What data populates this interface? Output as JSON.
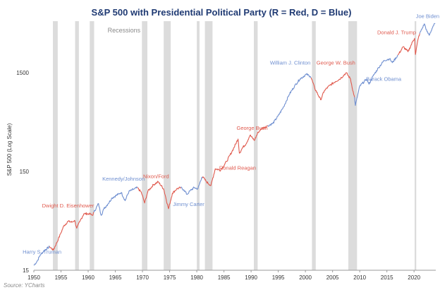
{
  "chart_data": {
    "type": "line",
    "title": "S&P 500 with Presidential Political Party (R = Red, D = Blue)",
    "ylabel": "S&P 500 (Log Scale)",
    "yscale": "log",
    "xlim": [
      1950,
      2024
    ],
    "ylim": [
      15,
      5000
    ],
    "x_ticks": [
      1950,
      1955,
      1960,
      1965,
      1970,
      1975,
      1980,
      1985,
      1990,
      1995,
      2000,
      2005,
      2010,
      2015,
      2020
    ],
    "y_ticks": [
      15,
      150,
      1500
    ],
    "recession_label": "Recessions",
    "recessions": [
      [
        1953.5,
        1954.4
      ],
      [
        1957.6,
        1958.3
      ],
      [
        1960.3,
        1961.1
      ],
      [
        1969.9,
        1970.9
      ],
      [
        1973.9,
        1975.2
      ],
      [
        1980.0,
        1980.5
      ],
      [
        1981.5,
        1982.9
      ],
      [
        1990.5,
        1991.2
      ],
      [
        2001.2,
        2001.9
      ],
      [
        2007.9,
        2009.5
      ],
      [
        2020.1,
        2020.4
      ]
    ],
    "colors": {
      "R": "#e05a4e",
      "D": "#6f8fd0",
      "recession": "#dcdcdc"
    },
    "series": [
      {
        "president": "Harry S. Truman",
        "party": "D",
        "points": [
          [
            1950,
            16.8
          ],
          [
            1950.6,
            18.5
          ],
          [
            1951.2,
            21.5
          ],
          [
            1952,
            24
          ],
          [
            1952.9,
            26
          ]
        ]
      },
      {
        "president": "Dwight D. Eisenhower",
        "party": "R",
        "points": [
          [
            1952.9,
            26
          ],
          [
            1953.6,
            24
          ],
          [
            1954.5,
            31
          ],
          [
            1955,
            36
          ],
          [
            1955.5,
            42
          ],
          [
            1956.3,
            47
          ],
          [
            1957,
            46
          ],
          [
            1957.5,
            48
          ],
          [
            1957.9,
            40
          ],
          [
            1958.5,
            47
          ],
          [
            1959.2,
            56
          ],
          [
            1960.2,
            56
          ],
          [
            1960.8,
            54
          ],
          [
            1961.05,
            58
          ]
        ]
      },
      {
        "president": "Kennedy/Johnson",
        "party": "D",
        "points": [
          [
            1961.05,
            58
          ],
          [
            1961.9,
            71
          ],
          [
            1962.4,
            54
          ],
          [
            1962.9,
            63
          ],
          [
            1963.6,
            70
          ],
          [
            1964.4,
            81
          ],
          [
            1965.5,
            88
          ],
          [
            1966.1,
            92
          ],
          [
            1966.8,
            76
          ],
          [
            1967.5,
            94
          ],
          [
            1968.5,
            100
          ],
          [
            1969.05,
            103
          ]
        ]
      },
      {
        "president": "Nixon/Ford",
        "party": "R",
        "points": [
          [
            1969.05,
            103
          ],
          [
            1969.8,
            92
          ],
          [
            1970.4,
            72
          ],
          [
            1971,
            95
          ],
          [
            1972,
            110
          ],
          [
            1972.9,
            118
          ],
          [
            1973.9,
            100
          ],
          [
            1974.8,
            63
          ],
          [
            1975.5,
            90
          ],
          [
            1976.3,
            100
          ],
          [
            1977.05,
            103
          ]
        ]
      },
      {
        "president": "Jimmy Carter",
        "party": "D",
        "points": [
          [
            1977.05,
            103
          ],
          [
            1977.6,
            98
          ],
          [
            1978.2,
            88
          ],
          [
            1978.8,
            96
          ],
          [
            1979.5,
            103
          ],
          [
            1980.2,
            100
          ],
          [
            1980.9,
            130
          ],
          [
            1981.05,
            133
          ]
        ]
      },
      {
        "president": "Ronald Reagan",
        "party": "R",
        "points": [
          [
            1981.05,
            133
          ],
          [
            1981.8,
            118
          ],
          [
            1982.6,
            108
          ],
          [
            1983.4,
            160
          ],
          [
            1984.4,
            155
          ],
          [
            1985.5,
            190
          ],
          [
            1986.5,
            240
          ],
          [
            1987.6,
            320
          ],
          [
            1987.85,
            230
          ],
          [
            1988.5,
            265
          ],
          [
            1989.05,
            285
          ]
        ]
      },
      {
        "president": "George Bush",
        "party": "R",
        "points": [
          [
            1989.05,
            285
          ],
          [
            1989.8,
            350
          ],
          [
            1990.6,
            310
          ],
          [
            1991.3,
            375
          ],
          [
            1992,
            410
          ],
          [
            1993.05,
            435
          ]
        ]
      },
      {
        "president": "William J. Clinton",
        "party": "D",
        "points": [
          [
            1993.05,
            435
          ],
          [
            1994,
            460
          ],
          [
            1995,
            550
          ],
          [
            1996,
            680
          ],
          [
            1997,
            900
          ],
          [
            1998,
            1100
          ],
          [
            1999,
            1300
          ],
          [
            2000.2,
            1450
          ],
          [
            2000.9,
            1380
          ],
          [
            2001.05,
            1340
          ]
        ]
      },
      {
        "president": "George W. Bush",
        "party": "R",
        "points": [
          [
            2001.05,
            1340
          ],
          [
            2001.7,
            1050
          ],
          [
            2002.8,
            800
          ],
          [
            2003.5,
            990
          ],
          [
            2004.5,
            1120
          ],
          [
            2005.5,
            1220
          ],
          [
            2006.5,
            1320
          ],
          [
            2007.5,
            1500
          ],
          [
            2008.3,
            1300
          ],
          [
            2008.9,
            900
          ],
          [
            2009.05,
            850
          ]
        ]
      },
      {
        "president": "Barack Obama",
        "party": "D",
        "points": [
          [
            2009.05,
            850
          ],
          [
            2009.2,
            700
          ],
          [
            2010,
            1100
          ],
          [
            2011.3,
            1300
          ],
          [
            2011.7,
            1150
          ],
          [
            2012.5,
            1400
          ],
          [
            2013.5,
            1700
          ],
          [
            2014.5,
            2000
          ],
          [
            2015.5,
            2080
          ],
          [
            2016,
            1900
          ],
          [
            2017.05,
            2270
          ]
        ]
      },
      {
        "president": "Donald J. Trump",
        "party": "R",
        "points": [
          [
            2017.05,
            2270
          ],
          [
            2018,
            2750
          ],
          [
            2018.9,
            2450
          ],
          [
            2019.8,
            3150
          ],
          [
            2020.1,
            3350
          ],
          [
            2020.25,
            2300
          ],
          [
            2020.8,
            3400
          ],
          [
            2021.05,
            3750
          ]
        ]
      },
      {
        "president": "Joe Biden",
        "party": "D",
        "points": [
          [
            2021.05,
            3750
          ],
          [
            2021.9,
            4700
          ],
          [
            2022.4,
            3900
          ],
          [
            2022.8,
            3600
          ],
          [
            2023.5,
            4450
          ],
          [
            2023.9,
            4750
          ]
        ]
      }
    ],
    "labels": [
      {
        "text": "Harry S. Truman",
        "party": "D",
        "x": 1951.5,
        "y": 22
      },
      {
        "text": "Dwight D. Eisenhower",
        "party": "R",
        "x": 1956.3,
        "y": 65
      },
      {
        "text": "Kennedy/Johnson",
        "party": "D",
        "x": 1966.5,
        "y": 121
      },
      {
        "text": "Nixon/Ford",
        "party": "R",
        "x": 1972.5,
        "y": 128
      },
      {
        "text": "Jimmy Carter",
        "party": "D",
        "x": 1978.5,
        "y": 67
      },
      {
        "text": "Ronald Reagan",
        "party": "R",
        "x": 1987.5,
        "y": 156
      },
      {
        "text": "George Bush",
        "party": "R",
        "x": 1990.2,
        "y": 395
      },
      {
        "text": "William J. Clinton",
        "party": "D",
        "x": 1997.2,
        "y": 1820
      },
      {
        "text": "George W. Bush",
        "party": "R",
        "x": 2005.6,
        "y": 1820
      },
      {
        "text": "Barack Obama",
        "party": "D",
        "x": 2014.4,
        "y": 1240
      },
      {
        "text": "Donald J. Trump",
        "party": "R",
        "x": 2016.8,
        "y": 3700
      },
      {
        "text": "Joe Biden",
        "party": "D",
        "x": 2022.5,
        "y": 5400
      }
    ],
    "recession_label_pos": {
      "x": 1966.6,
      "y": 3850
    },
    "source": "Source: YCharts"
  }
}
